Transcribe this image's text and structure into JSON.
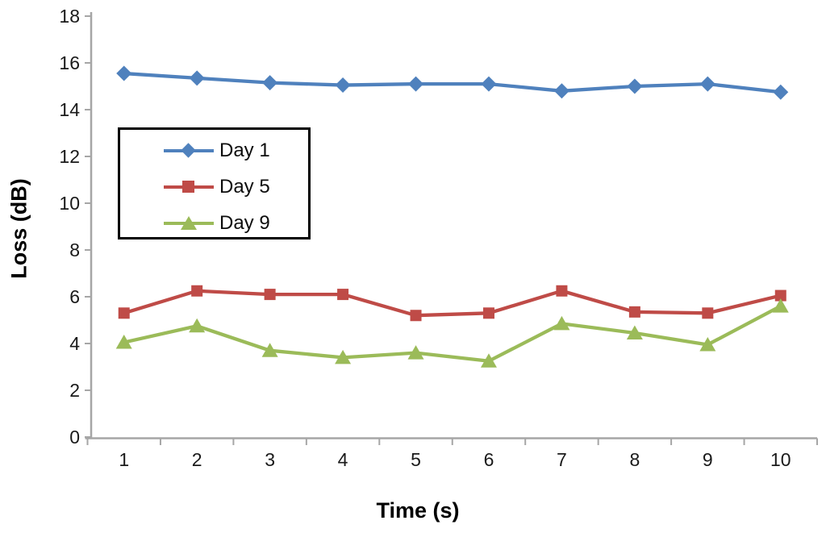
{
  "chart_data": {
    "type": "line",
    "title": "",
    "xlabel": "Time (s)",
    "ylabel": "Loss (dB)",
    "categories": [
      1,
      2,
      3,
      4,
      5,
      6,
      7,
      8,
      9,
      10
    ],
    "ylim": [
      0,
      18
    ],
    "ytick_step": 2,
    "yticks": [
      0,
      2,
      4,
      6,
      8,
      10,
      12,
      14,
      16,
      18
    ],
    "grid": false,
    "legend_position": "inside-upper-left",
    "axis_color": "#a6a6a6",
    "tick_label_color": "#1a1a1a",
    "series": [
      {
        "name": "Day 1",
        "marker": "diamond",
        "color": "#4f81bd",
        "values": [
          15.55,
          15.35,
          15.15,
          15.05,
          15.1,
          15.1,
          14.8,
          15.0,
          15.1,
          14.75
        ]
      },
      {
        "name": "Day 5",
        "marker": "square",
        "color": "#bf4b47",
        "values": [
          5.3,
          6.25,
          6.1,
          6.1,
          5.2,
          5.3,
          6.25,
          5.35,
          5.3,
          6.05
        ]
      },
      {
        "name": "Day 9",
        "marker": "triangle",
        "color": "#9bbb59",
        "values": [
          4.05,
          4.75,
          3.7,
          3.4,
          3.6,
          3.25,
          4.85,
          4.45,
          3.95,
          5.6
        ]
      }
    ]
  }
}
